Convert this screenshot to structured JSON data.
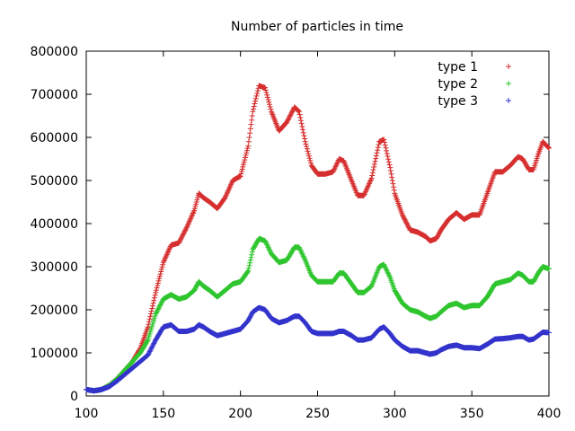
{
  "chart_data": {
    "type": "scatter",
    "title": "Number of particles in time",
    "xlabel": "",
    "ylabel": "",
    "xlim": [
      100,
      400
    ],
    "ylim": [
      0,
      800000
    ],
    "xticks": [
      100,
      150,
      200,
      250,
      300,
      350,
      400
    ],
    "yticks": [
      0,
      100000,
      200000,
      300000,
      400000,
      500000,
      600000,
      700000,
      800000
    ],
    "grid": false,
    "legend_position": "top-right",
    "series": [
      {
        "name": "type 1",
        "color": "#d62f2f",
        "marker": "plus",
        "points": [
          [
            100,
            15000
          ],
          [
            105,
            12000
          ],
          [
            110,
            15000
          ],
          [
            115,
            25000
          ],
          [
            120,
            40000
          ],
          [
            125,
            60000
          ],
          [
            130,
            80000
          ],
          [
            135,
            110000
          ],
          [
            140,
            160000
          ],
          [
            145,
            240000
          ],
          [
            150,
            310000
          ],
          [
            155,
            350000
          ],
          [
            160,
            355000
          ],
          [
            165,
            390000
          ],
          [
            170,
            430000
          ],
          [
            173,
            470000
          ],
          [
            176,
            460000
          ],
          [
            180,
            450000
          ],
          [
            185,
            435000
          ],
          [
            190,
            460000
          ],
          [
            195,
            500000
          ],
          [
            200,
            510000
          ],
          [
            205,
            580000
          ],
          [
            208,
            660000
          ],
          [
            212,
            720000
          ],
          [
            216,
            715000
          ],
          [
            220,
            660000
          ],
          [
            225,
            615000
          ],
          [
            230,
            635000
          ],
          [
            235,
            670000
          ],
          [
            238,
            660000
          ],
          [
            242,
            590000
          ],
          [
            246,
            535000
          ],
          [
            250,
            515000
          ],
          [
            255,
            515000
          ],
          [
            260,
            520000
          ],
          [
            264,
            550000
          ],
          [
            267,
            545000
          ],
          [
            272,
            500000
          ],
          [
            276,
            465000
          ],
          [
            280,
            465000
          ],
          [
            285,
            505000
          ],
          [
            290,
            590000
          ],
          [
            293,
            595000
          ],
          [
            297,
            530000
          ],
          [
            300,
            470000
          ],
          [
            305,
            420000
          ],
          [
            310,
            385000
          ],
          [
            315,
            380000
          ],
          [
            320,
            370000
          ],
          [
            323,
            360000
          ],
          [
            327,
            365000
          ],
          [
            330,
            385000
          ],
          [
            335,
            410000
          ],
          [
            340,
            425000
          ],
          [
            345,
            410000
          ],
          [
            350,
            420000
          ],
          [
            355,
            420000
          ],
          [
            360,
            470000
          ],
          [
            365,
            520000
          ],
          [
            370,
            520000
          ],
          [
            375,
            535000
          ],
          [
            380,
            555000
          ],
          [
            383,
            550000
          ],
          [
            387,
            525000
          ],
          [
            390,
            525000
          ],
          [
            393,
            560000
          ],
          [
            396,
            590000
          ],
          [
            400,
            575000
          ]
        ]
      },
      {
        "name": "type 2",
        "color": "#2fc52f",
        "marker": "plus",
        "points": [
          [
            100,
            15000
          ],
          [
            105,
            12000
          ],
          [
            110,
            15000
          ],
          [
            115,
            25000
          ],
          [
            120,
            40000
          ],
          [
            125,
            60000
          ],
          [
            130,
            80000
          ],
          [
            135,
            100000
          ],
          [
            140,
            130000
          ],
          [
            145,
            190000
          ],
          [
            150,
            225000
          ],
          [
            155,
            235000
          ],
          [
            160,
            225000
          ],
          [
            165,
            230000
          ],
          [
            170,
            245000
          ],
          [
            173,
            265000
          ],
          [
            176,
            255000
          ],
          [
            180,
            245000
          ],
          [
            185,
            230000
          ],
          [
            190,
            245000
          ],
          [
            195,
            260000
          ],
          [
            200,
            265000
          ],
          [
            205,
            290000
          ],
          [
            208,
            340000
          ],
          [
            212,
            365000
          ],
          [
            216,
            360000
          ],
          [
            220,
            330000
          ],
          [
            225,
            310000
          ],
          [
            230,
            315000
          ],
          [
            235,
            345000
          ],
          [
            238,
            345000
          ],
          [
            242,
            315000
          ],
          [
            246,
            280000
          ],
          [
            250,
            265000
          ],
          [
            255,
            265000
          ],
          [
            260,
            265000
          ],
          [
            264,
            285000
          ],
          [
            267,
            285000
          ],
          [
            272,
            260000
          ],
          [
            276,
            240000
          ],
          [
            280,
            240000
          ],
          [
            285,
            255000
          ],
          [
            290,
            300000
          ],
          [
            293,
            305000
          ],
          [
            297,
            275000
          ],
          [
            300,
            245000
          ],
          [
            305,
            215000
          ],
          [
            310,
            200000
          ],
          [
            315,
            195000
          ],
          [
            320,
            185000
          ],
          [
            323,
            180000
          ],
          [
            327,
            185000
          ],
          [
            330,
            195000
          ],
          [
            335,
            210000
          ],
          [
            340,
            215000
          ],
          [
            345,
            205000
          ],
          [
            350,
            210000
          ],
          [
            355,
            210000
          ],
          [
            360,
            230000
          ],
          [
            365,
            260000
          ],
          [
            370,
            265000
          ],
          [
            375,
            270000
          ],
          [
            380,
            285000
          ],
          [
            383,
            280000
          ],
          [
            387,
            265000
          ],
          [
            390,
            265000
          ],
          [
            393,
            285000
          ],
          [
            396,
            300000
          ],
          [
            400,
            295000
          ]
        ]
      },
      {
        "name": "type 3",
        "color": "#3333cc",
        "marker": "plus",
        "points": [
          [
            100,
            15000
          ],
          [
            105,
            12000
          ],
          [
            110,
            15000
          ],
          [
            115,
            22000
          ],
          [
            120,
            35000
          ],
          [
            125,
            50000
          ],
          [
            130,
            65000
          ],
          [
            135,
            80000
          ],
          [
            140,
            95000
          ],
          [
            145,
            130000
          ],
          [
            150,
            160000
          ],
          [
            155,
            165000
          ],
          [
            160,
            150000
          ],
          [
            165,
            150000
          ],
          [
            170,
            155000
          ],
          [
            173,
            165000
          ],
          [
            176,
            160000
          ],
          [
            180,
            150000
          ],
          [
            185,
            140000
          ],
          [
            190,
            145000
          ],
          [
            195,
            150000
          ],
          [
            200,
            155000
          ],
          [
            205,
            175000
          ],
          [
            208,
            195000
          ],
          [
            212,
            205000
          ],
          [
            216,
            200000
          ],
          [
            220,
            180000
          ],
          [
            225,
            170000
          ],
          [
            230,
            175000
          ],
          [
            235,
            185000
          ],
          [
            238,
            185000
          ],
          [
            242,
            170000
          ],
          [
            246,
            150000
          ],
          [
            250,
            145000
          ],
          [
            255,
            145000
          ],
          [
            260,
            145000
          ],
          [
            264,
            150000
          ],
          [
            267,
            150000
          ],
          [
            272,
            140000
          ],
          [
            276,
            130000
          ],
          [
            280,
            130000
          ],
          [
            285,
            135000
          ],
          [
            290,
            155000
          ],
          [
            293,
            160000
          ],
          [
            297,
            145000
          ],
          [
            300,
            130000
          ],
          [
            305,
            115000
          ],
          [
            310,
            105000
          ],
          [
            315,
            105000
          ],
          [
            320,
            100000
          ],
          [
            323,
            97000
          ],
          [
            327,
            100000
          ],
          [
            330,
            107000
          ],
          [
            335,
            115000
          ],
          [
            340,
            118000
          ],
          [
            345,
            112000
          ],
          [
            350,
            112000
          ],
          [
            355,
            110000
          ],
          [
            360,
            120000
          ],
          [
            365,
            132000
          ],
          [
            370,
            133000
          ],
          [
            375,
            135000
          ],
          [
            380,
            138000
          ],
          [
            383,
            138000
          ],
          [
            387,
            130000
          ],
          [
            390,
            132000
          ],
          [
            393,
            140000
          ],
          [
            396,
            148000
          ],
          [
            400,
            147000
          ]
        ]
      }
    ]
  }
}
